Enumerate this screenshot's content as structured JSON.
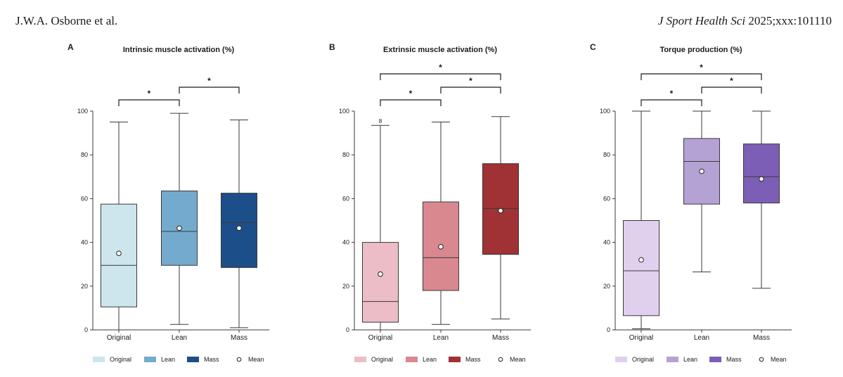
{
  "header": {
    "authors": "J.W.A. Osborne et al.",
    "journal": "J Sport Health Sci",
    "citation": "2025;xxx:101110"
  },
  "legend_mean_label": "Mean",
  "chart_data": [
    {
      "panel": "A",
      "type": "box",
      "title": "Intrinsic muscle activation (%)",
      "xlabel": "",
      "ylabel": "",
      "categories": [
        "Original",
        "Lean",
        "Mass"
      ],
      "colors": [
        "#cde6ed",
        "#74aacd",
        "#1c4e8a"
      ],
      "ylim": [
        0,
        100
      ],
      "yticks": [
        0,
        20,
        40,
        60,
        80,
        100
      ],
      "boxes": [
        {
          "min": 0,
          "q1": 10.5,
          "median": 29.5,
          "q3": 57.5,
          "max": 95,
          "mean": 35
        },
        {
          "min": 2.5,
          "q1": 29.5,
          "median": 45,
          "q3": 63.5,
          "max": 99,
          "mean": 46.5
        },
        {
          "min": 1,
          "q1": 28.5,
          "median": 49,
          "q3": 62.5,
          "max": 96,
          "mean": 46.5
        }
      ],
      "outliers": [],
      "significance": [
        {
          "from": 0,
          "to": 1,
          "label": "*"
        },
        {
          "from": 1,
          "to": 2,
          "label": "*"
        }
      ],
      "legend": [
        "Original",
        "Lean",
        "Mass"
      ]
    },
    {
      "panel": "B",
      "type": "box",
      "title": "Extrinsic muscle activation (%)",
      "xlabel": "",
      "ylabel": "",
      "categories": [
        "Original",
        "Lean",
        "Mass"
      ],
      "colors": [
        "#ecbdc6",
        "#d98890",
        "#a03134"
      ],
      "ylim": [
        0,
        100
      ],
      "yticks": [
        0,
        20,
        40,
        60,
        80,
        100
      ],
      "boxes": [
        {
          "min": 0,
          "q1": 3.5,
          "median": 13,
          "q3": 40,
          "max": 93.5,
          "mean": 25.5
        },
        {
          "min": 2.5,
          "q1": 18,
          "median": 33,
          "q3": 58.5,
          "max": 95,
          "mean": 38
        },
        {
          "min": 5,
          "q1": 34.5,
          "median": 55.5,
          "q3": 76,
          "max": 97.5,
          "mean": 54.5
        }
      ],
      "outliers": [
        {
          "group": 0,
          "value": 95.5,
          "label": "8"
        }
      ],
      "significance": [
        {
          "from": 0,
          "to": 1,
          "label": "*"
        },
        {
          "from": 1,
          "to": 2,
          "label": "*"
        },
        {
          "from": 0,
          "to": 2,
          "label": "*"
        }
      ],
      "legend": [
        "Original",
        "Lean",
        "Mass"
      ]
    },
    {
      "panel": "C",
      "type": "box",
      "title": "Torque production (%)",
      "xlabel": "",
      "ylabel": "",
      "categories": [
        "Original",
        "Lean",
        "Mass"
      ],
      "colors": [
        "#e0d0ee",
        "#b4a2d5",
        "#7c5eb6"
      ],
      "ylim": [
        0,
        100
      ],
      "yticks": [
        0,
        20,
        40,
        60,
        80,
        100
      ],
      "boxes": [
        {
          "min": 0.5,
          "q1": 6.5,
          "median": 27,
          "q3": 50,
          "max": 100,
          "mean": 32
        },
        {
          "min": 26.5,
          "q1": 57.5,
          "median": 77,
          "q3": 87.5,
          "max": 100,
          "mean": 72.5
        },
        {
          "min": 19,
          "q1": 58,
          "median": 70,
          "q3": 85,
          "max": 100,
          "mean": 69
        }
      ],
      "outliers": [],
      "significance": [
        {
          "from": 0,
          "to": 1,
          "label": "*"
        },
        {
          "from": 1,
          "to": 2,
          "label": "*"
        },
        {
          "from": 0,
          "to": 2,
          "label": "*"
        }
      ],
      "legend": [
        "Original",
        "Lean",
        "Mass"
      ]
    }
  ]
}
